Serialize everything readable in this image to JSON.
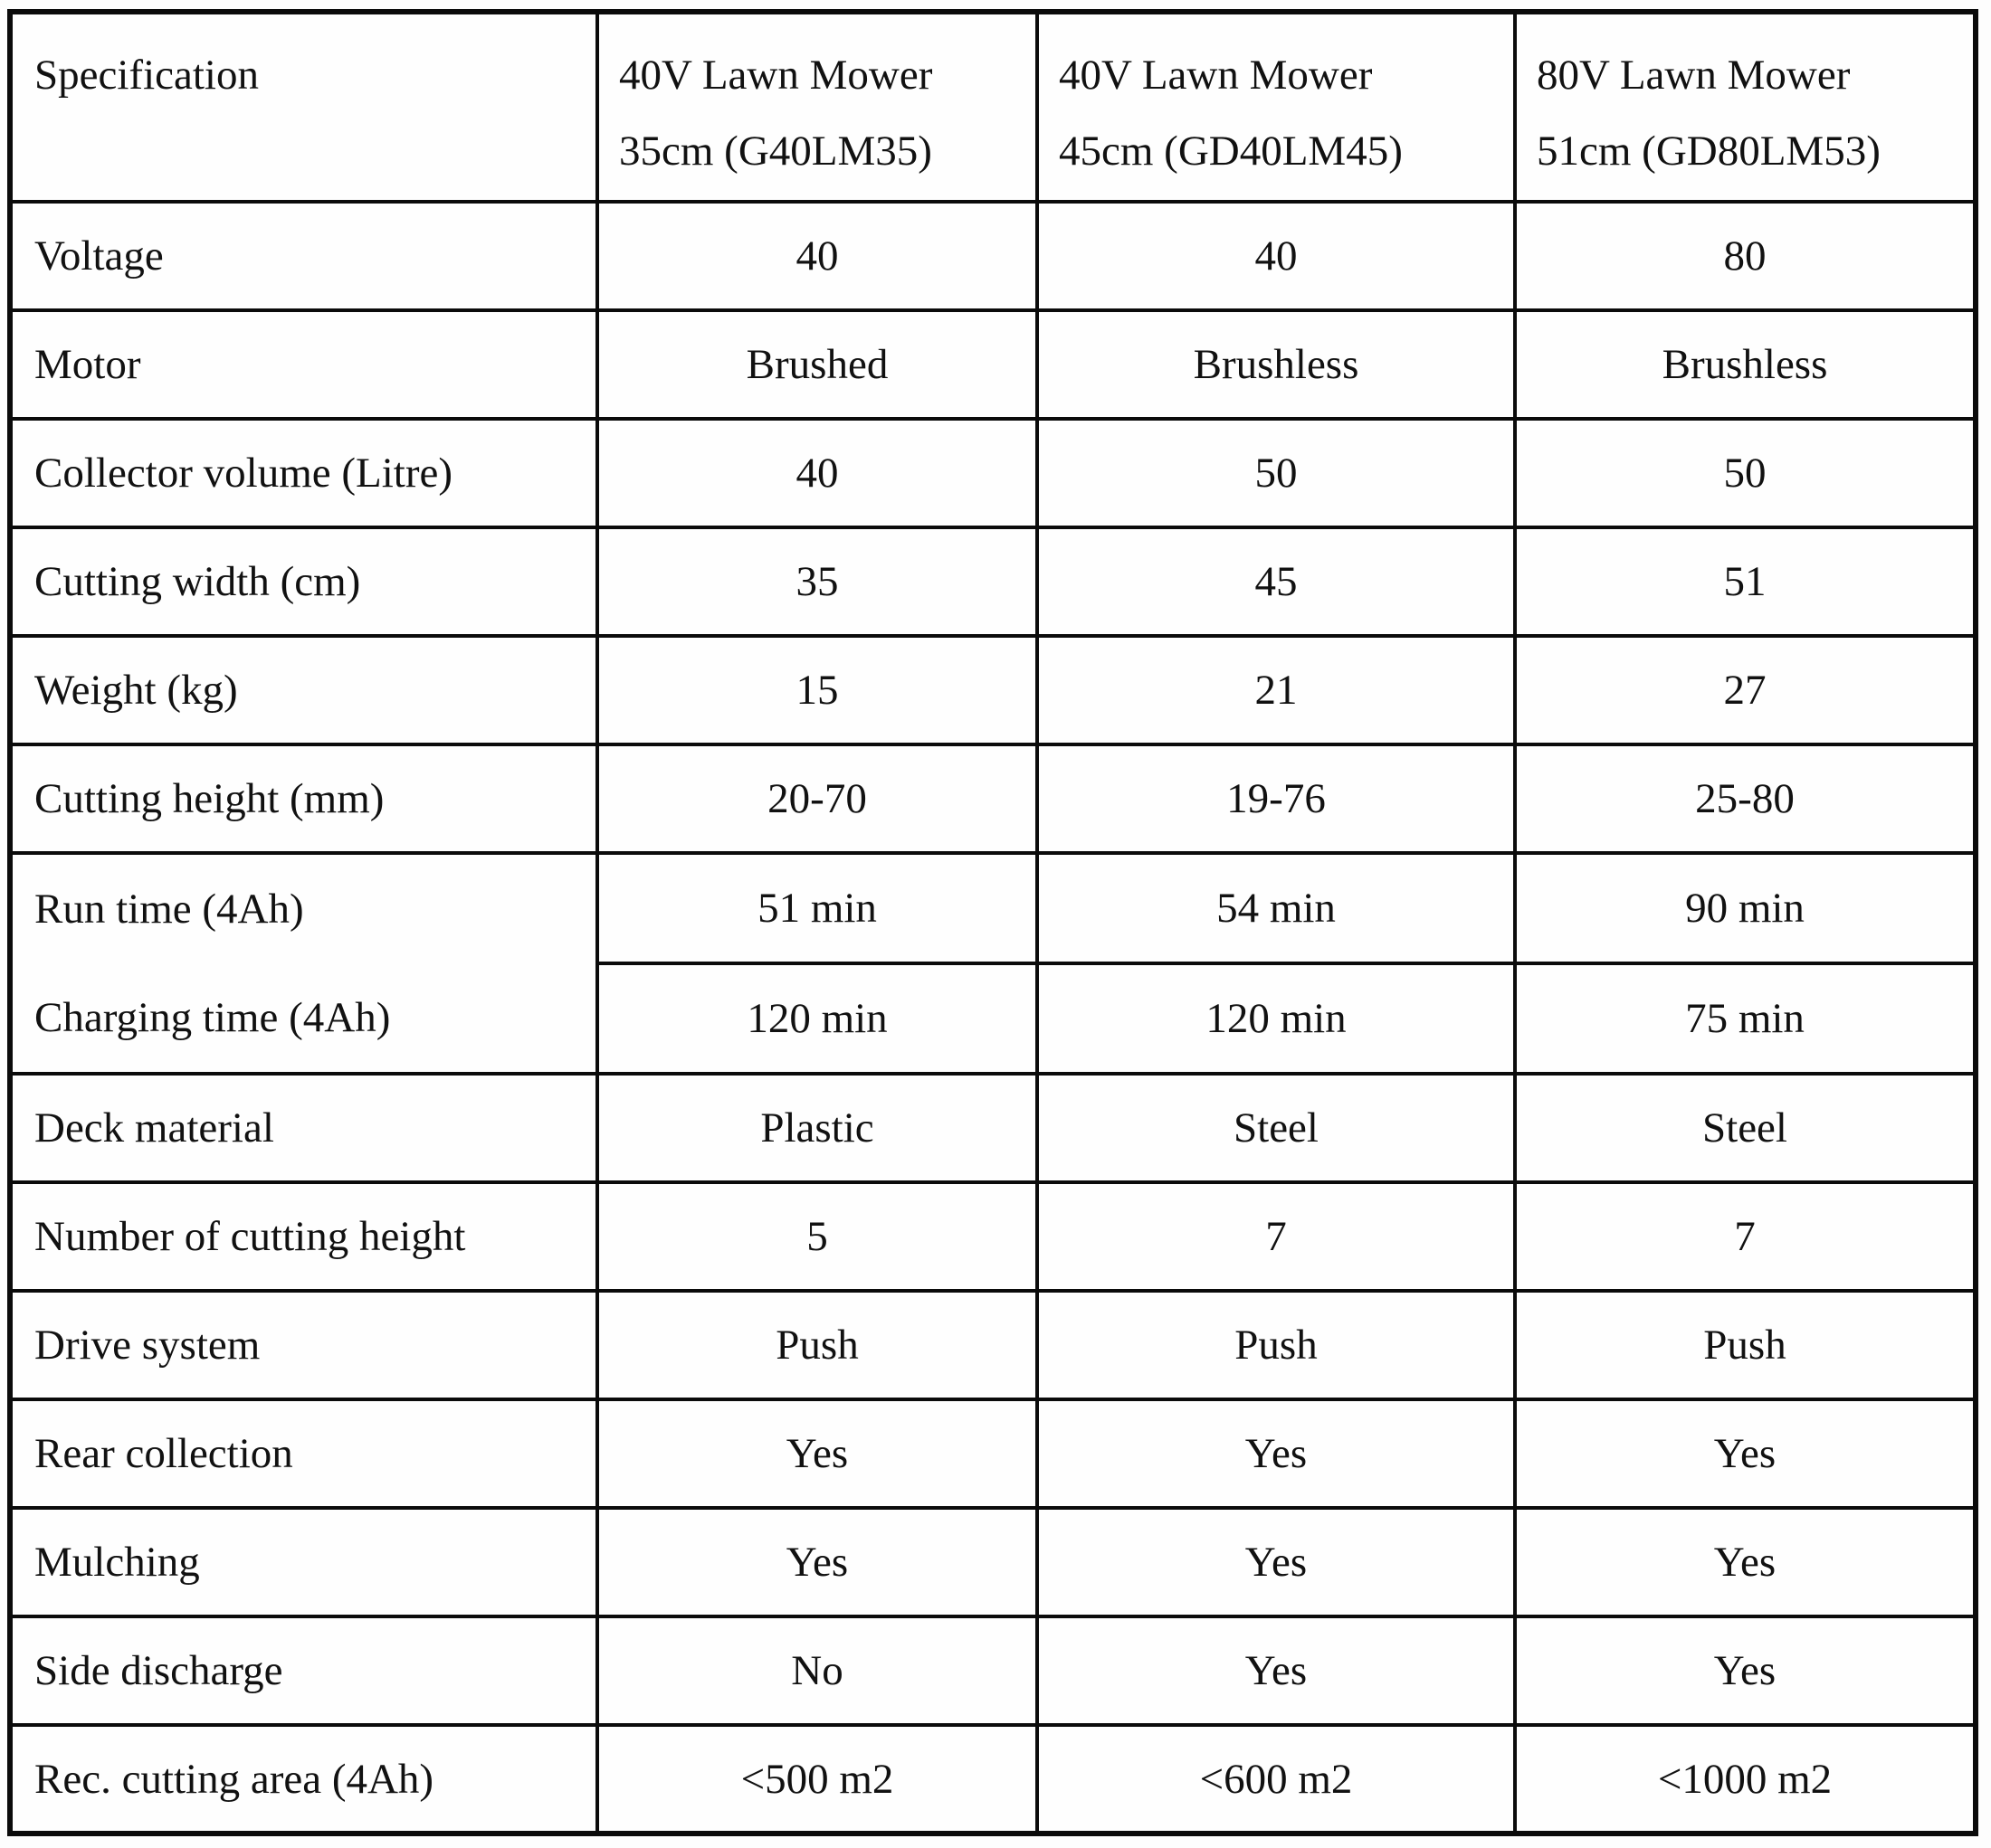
{
  "table": {
    "header": {
      "spec": "Specification",
      "products": [
        {
          "line1": "40V Lawn Mower",
          "line2": "35cm (G40LM35)"
        },
        {
          "line1": "40V Lawn Mower",
          "line2": "45cm (GD40LM45)"
        },
        {
          "line1": "80V Lawn Mower",
          "line2": "51cm (GD80LM53)"
        }
      ]
    },
    "rows": [
      {
        "label": "Voltage",
        "values": [
          "40",
          "40",
          "80"
        ]
      },
      {
        "label": "Motor",
        "values": [
          "Brushed",
          "Brushless",
          "Brushless"
        ]
      },
      {
        "label": "Collector volume (Litre)",
        "values": [
          "40",
          "50",
          "50"
        ]
      },
      {
        "label": "Cutting width (cm)",
        "values": [
          "35",
          "45",
          "51"
        ]
      },
      {
        "label": "Weight (kg)",
        "values": [
          "15",
          "21",
          "27"
        ]
      },
      {
        "label": "Cutting height (mm)",
        "values": [
          "20-70",
          "19-76",
          "25-80"
        ]
      },
      {
        "label": "Run time (4Ah)",
        "values": [
          "51 min",
          "54 min",
          "90 min"
        ]
      },
      {
        "label": "Charging time (4Ah)",
        "values": [
          "120 min",
          "120 min",
          "75 min"
        ]
      },
      {
        "label": "Deck material",
        "values": [
          "Plastic",
          "Steel",
          "Steel"
        ]
      },
      {
        "label": "Number of cutting height",
        "values": [
          "5",
          "7",
          "7"
        ]
      },
      {
        "label": "Drive system",
        "values": [
          "Push",
          "Push",
          "Push"
        ]
      },
      {
        "label": "Rear collection",
        "values": [
          "Yes",
          "Yes",
          "Yes"
        ]
      },
      {
        "label": "Mulching",
        "values": [
          "Yes",
          "Yes",
          "Yes"
        ]
      },
      {
        "label": "Side discharge",
        "values": [
          "No",
          "Yes",
          "Yes"
        ]
      },
      {
        "label": "Rec. cutting area (4Ah)",
        "values": [
          "<500 m2",
          "<600 m2",
          "<1000 m2"
        ]
      }
    ]
  }
}
